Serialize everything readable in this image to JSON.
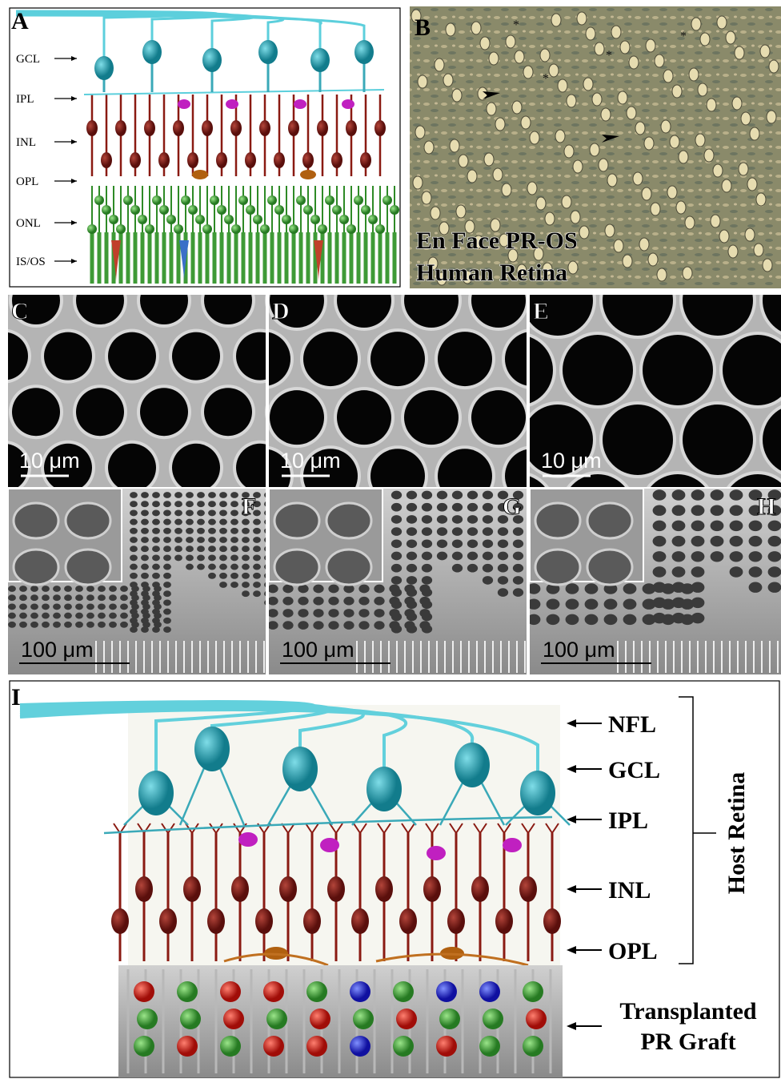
{
  "panels": {
    "A": {
      "label": "A",
      "layers": [
        "GCL",
        "IPL",
        "INL",
        "OPL",
        "ONL",
        "IS/OS"
      ]
    },
    "B": {
      "label": "B",
      "caption": [
        "En Face PR-OS",
        "Human Retina"
      ],
      "asterisks": [
        "*",
        "*",
        "*",
        "*"
      ]
    },
    "C": {
      "label": "C",
      "scale": "10 μm"
    },
    "D": {
      "label": "D",
      "scale": "10 μm"
    },
    "E": {
      "label": "E",
      "scale": "10 μm"
    },
    "F": {
      "label": "F",
      "scale": "100 μm"
    },
    "G": {
      "label": "G",
      "scale": "100 μm"
    },
    "H": {
      "label": "H",
      "scale": "100 μm"
    },
    "I": {
      "label": "I",
      "layers": [
        "NFL",
        "GCL",
        "IPL",
        "INL",
        "OPL"
      ],
      "bracket": "Host Retina",
      "graft": [
        "Transplanted",
        "PR Graft"
      ]
    }
  }
}
